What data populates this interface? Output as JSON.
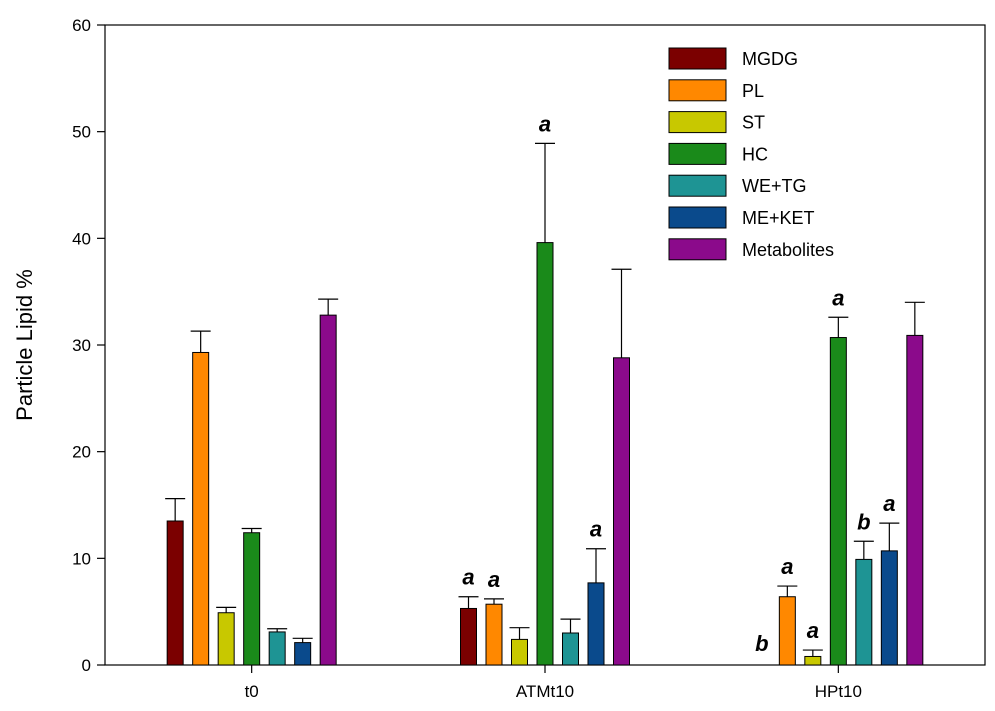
{
  "chart_data": {
    "type": "bar",
    "title": "",
    "xlabel": "",
    "ylabel": "Particle Lipid %",
    "ylim": [
      0,
      60
    ],
    "yticks": [
      0,
      10,
      20,
      30,
      40,
      50,
      60
    ],
    "grid": false,
    "legend": "top-right",
    "categories": [
      "t0",
      "ATMt10",
      "HPt10"
    ],
    "series": [
      {
        "name": "MGDG",
        "color": "#7b0000",
        "values": [
          13.5,
          5.3,
          0
        ],
        "errors": [
          2.1,
          1.1,
          0
        ],
        "annotations": [
          "",
          "a",
          "b"
        ]
      },
      {
        "name": "PL",
        "color": "#ff8800",
        "values": [
          29.3,
          5.7,
          6.4
        ],
        "errors": [
          2.0,
          0.5,
          1.0
        ],
        "annotations": [
          "",
          "a",
          "a"
        ]
      },
      {
        "name": "ST",
        "color": "#c8c800",
        "values": [
          4.9,
          2.4,
          0.8
        ],
        "errors": [
          0.5,
          1.1,
          0.6
        ],
        "annotations": [
          "",
          "",
          "a"
        ]
      },
      {
        "name": "HC",
        "color": "#1a8a1a",
        "values": [
          12.4,
          39.6,
          30.7
        ],
        "errors": [
          0.4,
          9.3,
          1.9
        ],
        "annotations": [
          "",
          "a",
          "a"
        ]
      },
      {
        "name": "WE+TG",
        "color": "#1e9494",
        "values": [
          3.1,
          3.0,
          9.9
        ],
        "errors": [
          0.3,
          1.3,
          1.7
        ],
        "annotations": [
          "",
          "",
          "b"
        ]
      },
      {
        "name": "ME+KET",
        "color": "#0a4a8c",
        "values": [
          2.1,
          7.7,
          10.7
        ],
        "errors": [
          0.4,
          3.2,
          2.6
        ],
        "annotations": [
          "",
          "a",
          "a"
        ]
      },
      {
        "name": "Metabolites",
        "color": "#8b0a8b",
        "values": [
          32.8,
          28.8,
          30.9
        ],
        "errors": [
          1.5,
          8.3,
          3.1
        ],
        "annotations": [
          "",
          "",
          ""
        ]
      }
    ]
  }
}
